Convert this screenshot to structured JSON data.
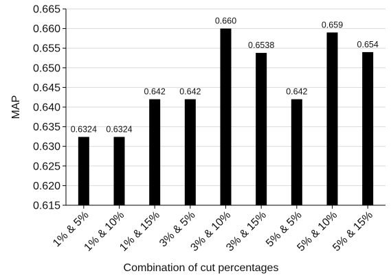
{
  "chart_data": {
    "type": "bar",
    "title": "",
    "xlabel": "Combination of cut percentages",
    "ylabel": "MAP",
    "categories": [
      "1% & 5%",
      "1% & 10%",
      "1% & 15%",
      "3% & 5%",
      "3% & 10%",
      "3% & 15%",
      "5% & 5%",
      "5% & 10%",
      "5% & 15%"
    ],
    "values": [
      0.6324,
      0.6324,
      0.642,
      0.642,
      0.66,
      0.6538,
      0.642,
      0.659,
      0.654
    ],
    "value_labels": [
      "0.6324",
      "0.6324",
      "0.642",
      "0.642",
      "0.660",
      "0.6538",
      "0.642",
      "0.659",
      "0.654"
    ],
    "ylim": [
      0.615,
      0.665
    ],
    "yticks": [
      0.615,
      0.62,
      0.625,
      0.63,
      0.635,
      0.64,
      0.645,
      0.65,
      0.655,
      0.66,
      0.665
    ],
    "ytick_labels": [
      "0.615",
      "0.620",
      "0.625",
      "0.630",
      "0.635",
      "0.640",
      "0.645",
      "0.650",
      "0.655",
      "0.660",
      "0.665"
    ],
    "grid": "horizontal",
    "bar_color": "#000000",
    "grid_color": "#d9d9d9"
  }
}
